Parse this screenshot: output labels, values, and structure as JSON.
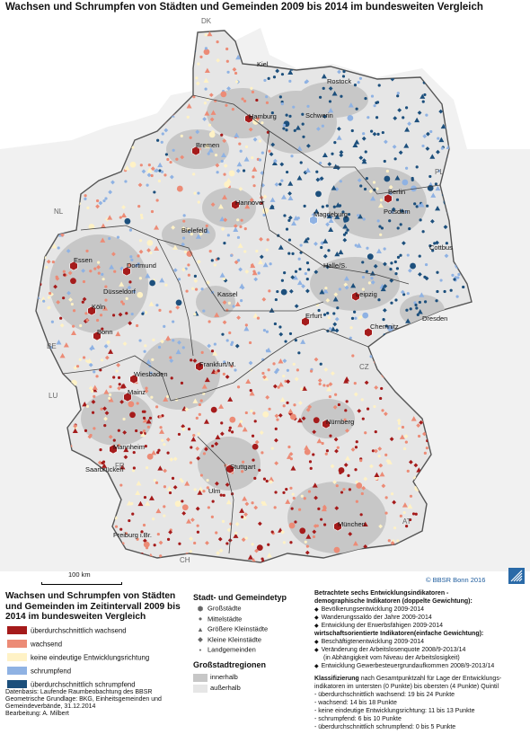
{
  "map": {
    "title": "Wachsen und Schrumpfen von Städten und Gemeinden  2009 bis 2014 im bundesweiten Vergleich",
    "copyright": "© BBSR Bonn 2016",
    "scale_label": "100 km",
    "cities": [
      "Kiel",
      "Rostock",
      "Hamburg",
      "Schwerin",
      "Bremen",
      "Berlin",
      "Potsdam",
      "Hannover",
      "Magdeburg",
      "Bielefeld",
      "Cottbus",
      "Essen",
      "Dortmund",
      "Halle/S.",
      "Düsseldorf",
      "Kassel",
      "Leipzig",
      "Köln",
      "Erfurt",
      "Dresden",
      "Bonn",
      "Chemnitz",
      "Wiesbaden",
      "Frankfurt/M.",
      "Mainz",
      "Nürnberg",
      "Mannheim",
      "Saarbrücken",
      "Stuttgart",
      "Ulm",
      "München",
      "Freiburg i.Br."
    ],
    "countries": [
      "DK",
      "PL",
      "NL",
      "BE",
      "LU",
      "FR",
      "CH",
      "AT",
      "CZ"
    ],
    "colors": {
      "strong_growth": "#a51b1b",
      "growth": "#ec8b76",
      "neutral": "#fff2c6",
      "shrink": "#8fb2e3",
      "strong_shrink": "#1c4f7c",
      "region_inner": "#c7c7c7",
      "region_outer": "#e6e6e6",
      "sea": "#ffffff"
    }
  },
  "legend": {
    "title": "Wachsen und Schrumpfen von Städten und Gemeinden im Zeitintervall 2009 bis 2014 im bundesweiten Vergleich",
    "classes": [
      {
        "label": "überdurchschnittlich wachsend",
        "color": "#a51b1b"
      },
      {
        "label": "wachsend",
        "color": "#ec8b76"
      },
      {
        "label": "keine eindeutige Entwicklungsrichtung",
        "color": "#fff2c6"
      },
      {
        "label": "schrumpfend",
        "color": "#8fb2e3"
      },
      {
        "label": "überdurchschnittlich schrumpfend",
        "color": "#1c4f7c"
      }
    ],
    "type_title": "Stadt- und Gemeindetyp",
    "types": [
      {
        "label": "Großstädte",
        "symbol": "⬢"
      },
      {
        "label": "Mittelstädte",
        "symbol": "●"
      },
      {
        "label": "Größere Kleinstädte",
        "symbol": "▲"
      },
      {
        "label": "Kleine Kleinstädte",
        "symbol": "◆"
      },
      {
        "label": "Landgemeinden",
        "symbol": "•"
      }
    ],
    "region_title": "Großstadtregionen",
    "regions": [
      {
        "label": "innerhalb",
        "color": "#c7c7c7"
      },
      {
        "label": "außerhalb",
        "color": "#e6e6e6"
      }
    ]
  },
  "indicators": {
    "heading1": "Betrachtete sechs Entwicklungsindikatoren -",
    "heading2": "demographische Indikatoren (doppelte Gewichtung):",
    "demo": [
      "Bevölkerungsentwicklung 2009-2014",
      "Wanderungssaldo der Jahre 2009-2014",
      "Entwicklung der Erwerbsfähigen 2009-2014"
    ],
    "heading3": "wirtschaftsorientierte Indikatoren(einfache Gewichtung):",
    "econ": [
      "Beschäftigtenentwicklung 2009-2014",
      "Veränderung der Arbeitslosenquote 2008/9-2013/14"
    ],
    "econ_note": "(in Abhängigkeit vom Niveau der Arbeitslosigkeit)",
    "econ_last": "Entwicklung Gewerbesteuergrundaufkommen 2008/9-2013/14",
    "class_heading": "Klassifizierung",
    "class_line1": " nach Gesamtpunktzahl für Lage der Entwicklungs-",
    "class_line2": "indikatoren im untersten (0 Punkte) bis  obersten (4 Punkte) Quintil",
    "class_items": [
      "- überdurchschnittlich wachsend: 19 bis 24 Punkte",
      "- wachsend: 14 bis 18 Punkte",
      "- keine eindeutige Entwicklungsrichtung: 11 bis 13 Punkte",
      "- schrumpfend: 6 bis 10 Punkte",
      "- überdurchschnittlich schrumpfend: 0 bis 5 Punkte"
    ]
  },
  "source": [
    "Datenbasis: Laufende Raumbeobachtung des BBSR",
    "Geometrische Grundlage: BKG, Einheitsgemeinden und",
    "Gemeindeverbände, 31.12.2014",
    "Bearbeitung: A. Milbert"
  ]
}
